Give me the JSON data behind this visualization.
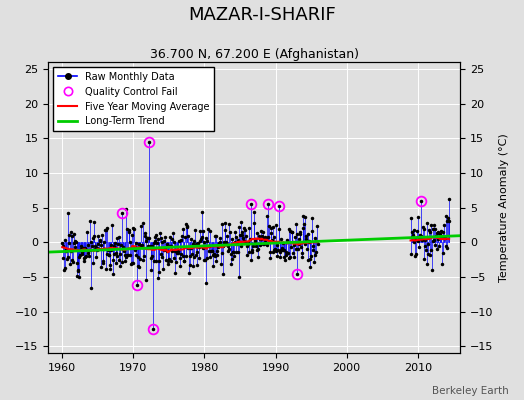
{
  "title": "MAZAR-I-SHARIF",
  "subtitle": "36.700 N, 67.200 E (Afghanistan)",
  "ylabel": "Temperature Anomaly (°C)",
  "credit": "Berkeley Earth",
  "ylim": [
    -16,
    26
  ],
  "xlim": [
    1958,
    2016
  ],
  "yticks": [
    -15,
    -10,
    -5,
    0,
    5,
    10,
    15,
    20,
    25
  ],
  "xticks": [
    1960,
    1970,
    1980,
    1990,
    2000,
    2010
  ],
  "bg_color": "#e0e0e0",
  "plot_bg_color": "#e0e0e0",
  "grid_color": "#ffffff",
  "line_color": "#0000ff",
  "ma_color": "#ff0000",
  "trend_color": "#00cc00",
  "qc_color": "#ff00ff",
  "seed": 12
}
